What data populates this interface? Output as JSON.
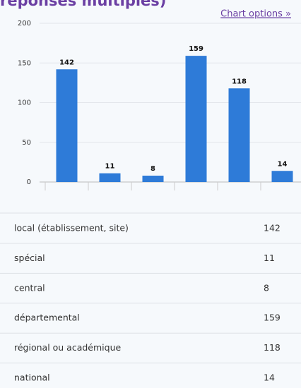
{
  "link": "Chart options »",
  "chart_data": {
    "type": "bar",
    "title": "réponses multiples)",
    "categories": [
      "local (établissement, site)",
      "spécial",
      "central",
      "départemental",
      "régional ou académique",
      "national"
    ],
    "values": [
      142,
      11,
      8,
      159,
      118,
      14
    ],
    "color": "#2e7bd8",
    "ylim": [
      0,
      200
    ],
    "yticks": [
      0,
      50,
      100,
      150,
      200
    ],
    "grid": true
  }
}
